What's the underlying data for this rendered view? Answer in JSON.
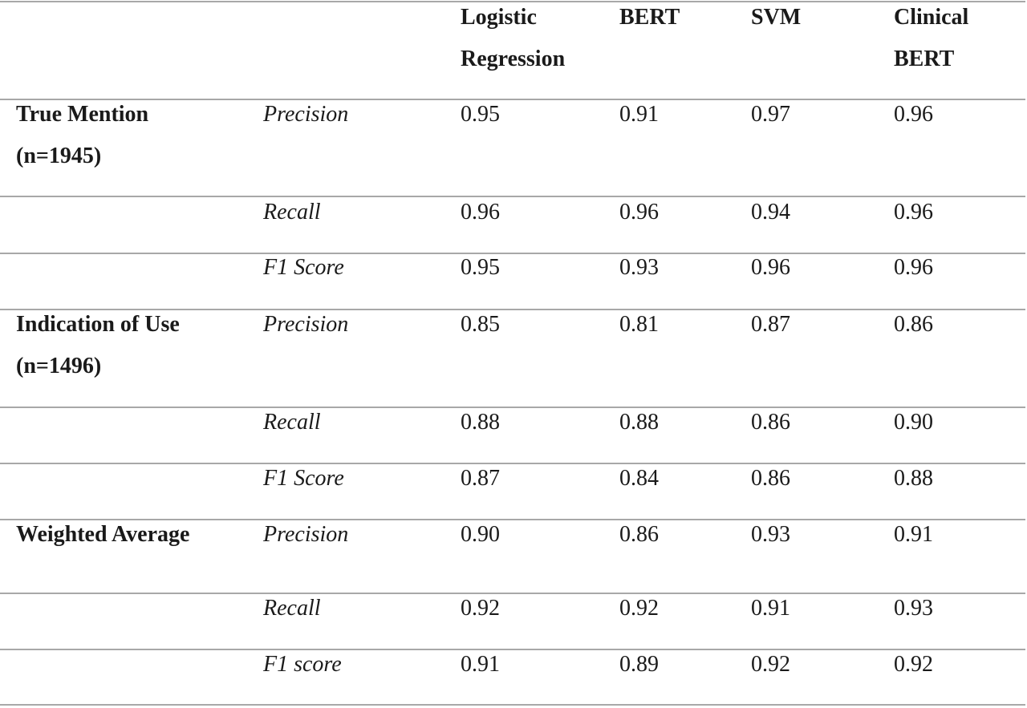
{
  "header": {
    "col1": [
      "Logistic",
      "Regression"
    ],
    "col2": [
      "BERT"
    ],
    "col3": [
      "SVM"
    ],
    "col4": [
      "Clinical",
      "BERT"
    ]
  },
  "groups": [
    {
      "label": [
        "True Mention",
        "(n=1945)"
      ],
      "rows": [
        {
          "metric": "Precision",
          "values": [
            "0.95",
            "0.91",
            "0.97",
            "0.96"
          ]
        },
        {
          "metric": "Recall",
          "values": [
            "0.96",
            "0.96",
            "0.94",
            "0.96"
          ]
        },
        {
          "metric": "F1 Score",
          "values": [
            "0.95",
            "0.93",
            "0.96",
            "0.96"
          ]
        }
      ]
    },
    {
      "label": [
        "Indication of Use",
        "(n=1496)"
      ],
      "rows": [
        {
          "metric": "Precision",
          "values": [
            "0.85",
            "0.81",
            "0.87",
            "0.86"
          ]
        },
        {
          "metric": "Recall",
          "values": [
            "0.88",
            "0.88",
            "0.86",
            "0.90"
          ]
        },
        {
          "metric": "F1 Score",
          "values": [
            "0.87",
            "0.84",
            "0.86",
            "0.88"
          ]
        }
      ]
    },
    {
      "label": [
        "Weighted Average"
      ],
      "rows": [
        {
          "metric": "Precision",
          "values": [
            "0.90",
            "0.86",
            "0.93",
            "0.91"
          ]
        },
        {
          "metric": "Recall",
          "values": [
            "0.92",
            "0.92",
            "0.91",
            "0.93"
          ]
        },
        {
          "metric": "F1 score",
          "values": [
            "0.91",
            "0.89",
            "0.92",
            "0.92"
          ]
        }
      ]
    }
  ]
}
